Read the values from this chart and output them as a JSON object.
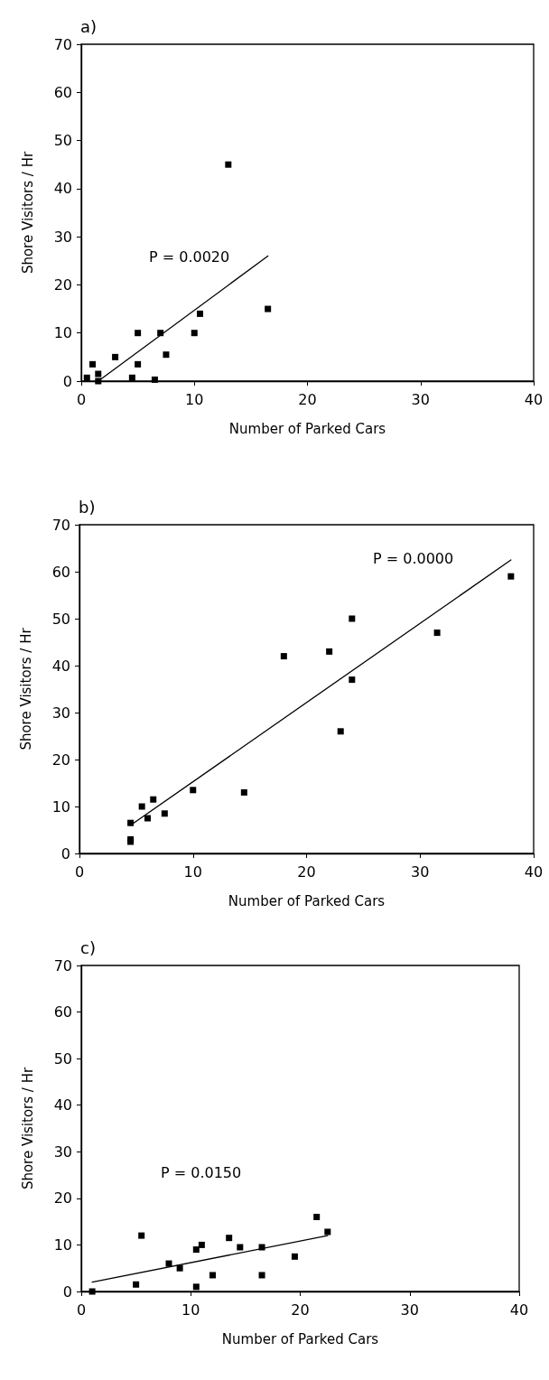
{
  "chart_data": [
    {
      "type": "scatter",
      "title": "a)",
      "xlabel": "Number of Parked Cars",
      "ylabel": "Shore Visitors / Hr",
      "xlim": [
        0,
        40
      ],
      "xticks": [
        0,
        10,
        20,
        30,
        40
      ],
      "ylim": [
        0,
        70
      ],
      "yticks": [
        0,
        10,
        20,
        30,
        40,
        50,
        60,
        70
      ],
      "marker": "square",
      "annotations": [
        "P = 0.0020"
      ],
      "series": [
        {
          "color": "#000000",
          "x": [
            0.5,
            1,
            1.5,
            1.5,
            3,
            4.5,
            5,
            5,
            6.5,
            7,
            7.5,
            10,
            10.5,
            13,
            16.5
          ],
          "values": [
            0.7,
            3.5,
            1.5,
            0,
            5,
            0.7,
            3.5,
            10,
            0.3,
            10,
            5.5,
            10,
            14,
            45,
            15
          ]
        },
        {
          "type": "line",
          "color": "#000000",
          "marker": "none",
          "x": [
            1.5,
            16.5
          ],
          "values": [
            0,
            26
          ]
        }
      ]
    },
    {
      "type": "scatter",
      "title": "b)",
      "xlabel": "Number of Parked Cars",
      "ylabel": "Shore Visitors / Hr",
      "xlim": [
        0,
        40
      ],
      "xticks": [
        0,
        10,
        20,
        30,
        40
      ],
      "ylim": [
        0,
        70
      ],
      "yticks": [
        0,
        10,
        20,
        30,
        40,
        50,
        60,
        70
      ],
      "marker": "square",
      "annotations": [
        "P = 0.0000"
      ],
      "series": [
        {
          "color": "#000000",
          "x": [
            4.5,
            4.5,
            4.5,
            5.5,
            6,
            6.5,
            7.5,
            10,
            14.5,
            18,
            22,
            24,
            24,
            23,
            31.5,
            38
          ],
          "values": [
            3,
            2.5,
            6.5,
            10,
            7.5,
            11.5,
            8.5,
            13.5,
            13,
            42,
            43,
            50,
            37,
            26,
            47,
            59
          ]
        },
        {
          "type": "line",
          "color": "#000000",
          "marker": "none",
          "x": [
            4.5,
            38
          ],
          "values": [
            6,
            62.5
          ]
        }
      ]
    },
    {
      "type": "scatter",
      "title": "c)",
      "xlabel": "Number of Parked Cars",
      "ylabel": "Shore Visitors / Hr",
      "xlim": [
        0,
        40
      ],
      "xticks": [
        0,
        10,
        20,
        30,
        40
      ],
      "ylim": [
        0,
        70
      ],
      "yticks": [
        0,
        10,
        20,
        30,
        40,
        50,
        60,
        70
      ],
      "marker": "square",
      "annotations": [
        "P = 0.0150"
      ],
      "series": [
        {
          "color": "#000000",
          "x": [
            1,
            5,
            5.5,
            8,
            9,
            10.5,
            10.5,
            11,
            12,
            13.5,
            14.5,
            16.5,
            16.5,
            19.5,
            21.5,
            22.5
          ],
          "values": [
            0,
            1.5,
            12,
            6,
            5,
            9,
            1,
            10,
            3.5,
            11.5,
            9.5,
            9.5,
            3.5,
            7.5,
            16,
            12.8
          ]
        },
        {
          "type": "line",
          "color": "#000000",
          "marker": "none",
          "x": [
            1,
            22.5
          ],
          "values": [
            2,
            12
          ]
        }
      ]
    }
  ]
}
